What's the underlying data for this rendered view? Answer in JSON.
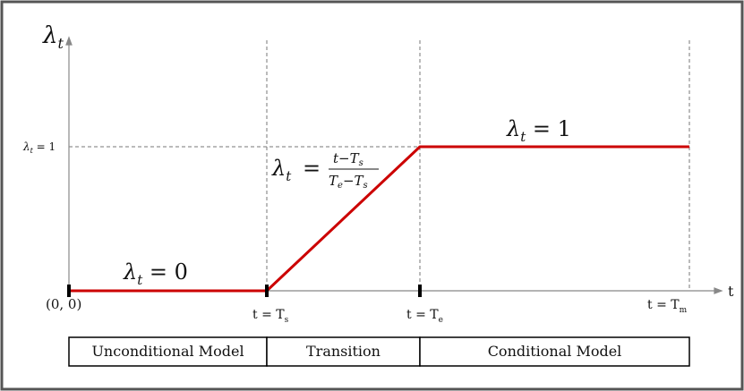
{
  "colors": {
    "frame": "#555555",
    "axis": "#888888",
    "dashed": "#777777",
    "curve": "#cc0000",
    "text": "#111111",
    "tick": "#000000"
  },
  "axes": {
    "y_symbol": "λ",
    "y_sub": "t",
    "x_label": "t"
  },
  "ticks": {
    "origin": "(0, 0)",
    "ts_main": "t = T",
    "ts_sub": "s",
    "te_main": "t = T",
    "te_sub": "e",
    "tm_main": "t = T",
    "tm_sub": "m",
    "y_one_symbol": "λ",
    "y_one_sub": "t",
    "y_one_rest": " = 1"
  },
  "annotations": {
    "zero": {
      "symbol": "λ",
      "sub": "t",
      "rest": " = 0"
    },
    "one": {
      "symbol": "λ",
      "sub": "t",
      "rest": " = 1"
    },
    "ramp": {
      "symbol": "λ",
      "sub": "t",
      "eq": "=",
      "num_a": "t−T",
      "num_sub": "s",
      "den_a": "T",
      "den_a_sub": "e",
      "den_b": "−T",
      "den_b_sub": "s"
    }
  },
  "phases": [
    {
      "label": "Unconditional Model"
    },
    {
      "label": "Transition"
    },
    {
      "label": "Conditional Model"
    }
  ]
}
